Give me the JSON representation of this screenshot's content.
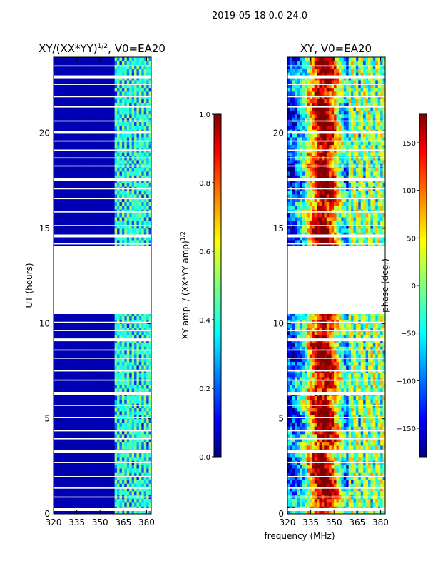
{
  "figure": {
    "suptitle": "2019-05-18 0.0-24.0",
    "shared_xlabel": "frequency (MHz)"
  },
  "chart_data": [
    {
      "type": "heatmap",
      "title": "XY/(XX*YY)",
      "title_exp": "1/2",
      "title_suffix": ", V0=EA20",
      "ylabel": "UT (hours)",
      "xlim": [
        320,
        383
      ],
      "ylim": [
        0,
        24
      ],
      "x_ticks": [
        320,
        335,
        350,
        365,
        380
      ],
      "y_ticks": [
        0,
        5,
        10,
        15,
        20
      ],
      "colorbar": {
        "label": "XY amp. / (XX*YY amp)",
        "label_exp": "1/2",
        "range": [
          0.0,
          1.0
        ],
        "ticks": [
          "0.0",
          "0.2",
          "0.4",
          "0.6",
          "0.8",
          "1.0"
        ],
        "colormap": "jet"
      },
      "data_gap_hours": [
        10.5,
        14.1
      ],
      "signal_band_mhz": [
        360,
        383
      ],
      "typical_value_out_of_band": 0.05,
      "typical_value_in_band": 0.35
    },
    {
      "type": "heatmap",
      "title": "XY, V0=EA20",
      "xlim": [
        320,
        383
      ],
      "ylim": [
        0,
        24
      ],
      "x_ticks": [
        320,
        335,
        350,
        365,
        380
      ],
      "y_ticks": [
        0,
        5,
        10,
        15,
        20
      ],
      "colorbar": {
        "label": "phase (deg.)",
        "range": [
          -180,
          180
        ],
        "ticks": [
          "-150",
          "-100",
          "-50",
          "0",
          "50",
          "100",
          "150"
        ],
        "colormap": "jet"
      },
      "data_gap_hours": [
        10.5,
        14.1
      ],
      "phase_peak_center_mhz": 343
    }
  ],
  "colors": {
    "jet": [
      "#00007f",
      "#0000ff",
      "#007fff",
      "#00ffff",
      "#7fff7f",
      "#ffff00",
      "#ff7f00",
      "#ff0000",
      "#7f0000"
    ]
  }
}
